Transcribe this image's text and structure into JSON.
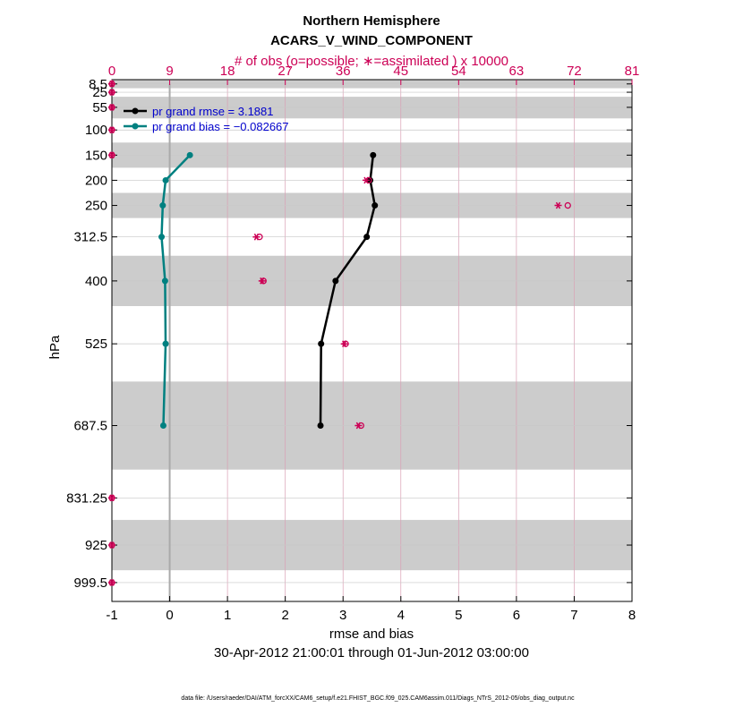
{
  "chart_data": {
    "type": "line",
    "title": "Northern Hemisphere",
    "subtitle": "ACARS_V_WIND_COMPONENT",
    "top_axis_label": "# of obs (o=possible; ∗=assimilated ) x 10000",
    "xlabel": "rmse and bias",
    "ylabel": "hPa",
    "date_range": "30-Apr-2012 21:00:01 through 01-Jun-2012 03:00:00",
    "footnote": "data file: /Users/raeder/DAI/ATM_forcXX/CAM6_setup/f.e21.FHIST_BGC.f09_025.CAM6assim.011/Diags_NTrS_2012-05/obs_diag_output.nc",
    "xlim": [
      -1,
      8
    ],
    "xticks": [
      -1,
      0,
      1,
      2,
      3,
      4,
      5,
      6,
      7,
      8
    ],
    "top_xlim": [
      0,
      81
    ],
    "top_xticks": [
      0,
      9,
      18,
      27,
      36,
      45,
      54,
      63,
      72,
      81
    ],
    "ylim": [
      1037,
      0
    ],
    "levels": [
      8.5,
      25,
      55,
      100,
      150,
      200,
      250,
      312.5,
      400,
      525,
      687.5,
      831.25,
      925,
      999.5
    ],
    "level_labels": [
      "8.5",
      "25",
      "55",
      "100",
      "150",
      "200",
      "250",
      "312.5",
      "400",
      "525",
      "687.5",
      "831.25",
      "925",
      "999.5"
    ],
    "shaded_layers": [
      [
        0,
        17
      ],
      [
        34,
        77
      ],
      [
        125,
        175
      ],
      [
        225,
        275
      ],
      [
        350,
        450
      ],
      [
        600,
        775
      ],
      [
        875,
        975
      ]
    ],
    "series": [
      {
        "name": "pr grand rmse = 3.1881",
        "color": "#000000",
        "points": [
          [
            3.52,
            150
          ],
          [
            3.47,
            200
          ],
          [
            3.55,
            250
          ],
          [
            3.41,
            312.5
          ],
          [
            2.87,
            400
          ],
          [
            2.62,
            525
          ],
          [
            2.61,
            687.5
          ]
        ]
      },
      {
        "name": "pr grand bias = −0.082667",
        "color": "#008080",
        "points": [
          [
            0.35,
            150
          ],
          [
            -0.07,
            200
          ],
          [
            -0.12,
            250
          ],
          [
            -0.14,
            312.5
          ],
          [
            -0.08,
            400
          ],
          [
            -0.07,
            525
          ],
          [
            -0.11,
            687.5
          ]
        ]
      }
    ],
    "obs_counts": {
      "possible": [
        [
          0,
          8.5
        ],
        [
          0,
          25
        ],
        [
          0,
          55
        ],
        [
          0,
          100
        ],
        [
          0,
          150
        ],
        [
          40,
          200
        ],
        [
          71,
          250
        ],
        [
          23,
          312.5
        ],
        [
          23.6,
          400
        ],
        [
          36.4,
          525
        ],
        [
          38.8,
          687.5
        ],
        [
          0,
          831.25
        ],
        [
          0,
          925
        ],
        [
          0,
          999.5
        ]
      ],
      "assimilated": [
        [
          0,
          8.5
        ],
        [
          0,
          25
        ],
        [
          0,
          55
        ],
        [
          0,
          100
        ],
        [
          0,
          150
        ],
        [
          39.6,
          200
        ],
        [
          69.5,
          250
        ],
        [
          22.5,
          312.5
        ],
        [
          23.4,
          400
        ],
        [
          36.2,
          525
        ],
        [
          38.4,
          687.5
        ],
        [
          0,
          831.25
        ],
        [
          0,
          925
        ],
        [
          0,
          999.5
        ]
      ]
    },
    "colors": {
      "obs": "#cc0055",
      "shade": "#cccccc",
      "zero_line": "#aaaaaa",
      "legend_text": "#0000cc"
    }
  }
}
